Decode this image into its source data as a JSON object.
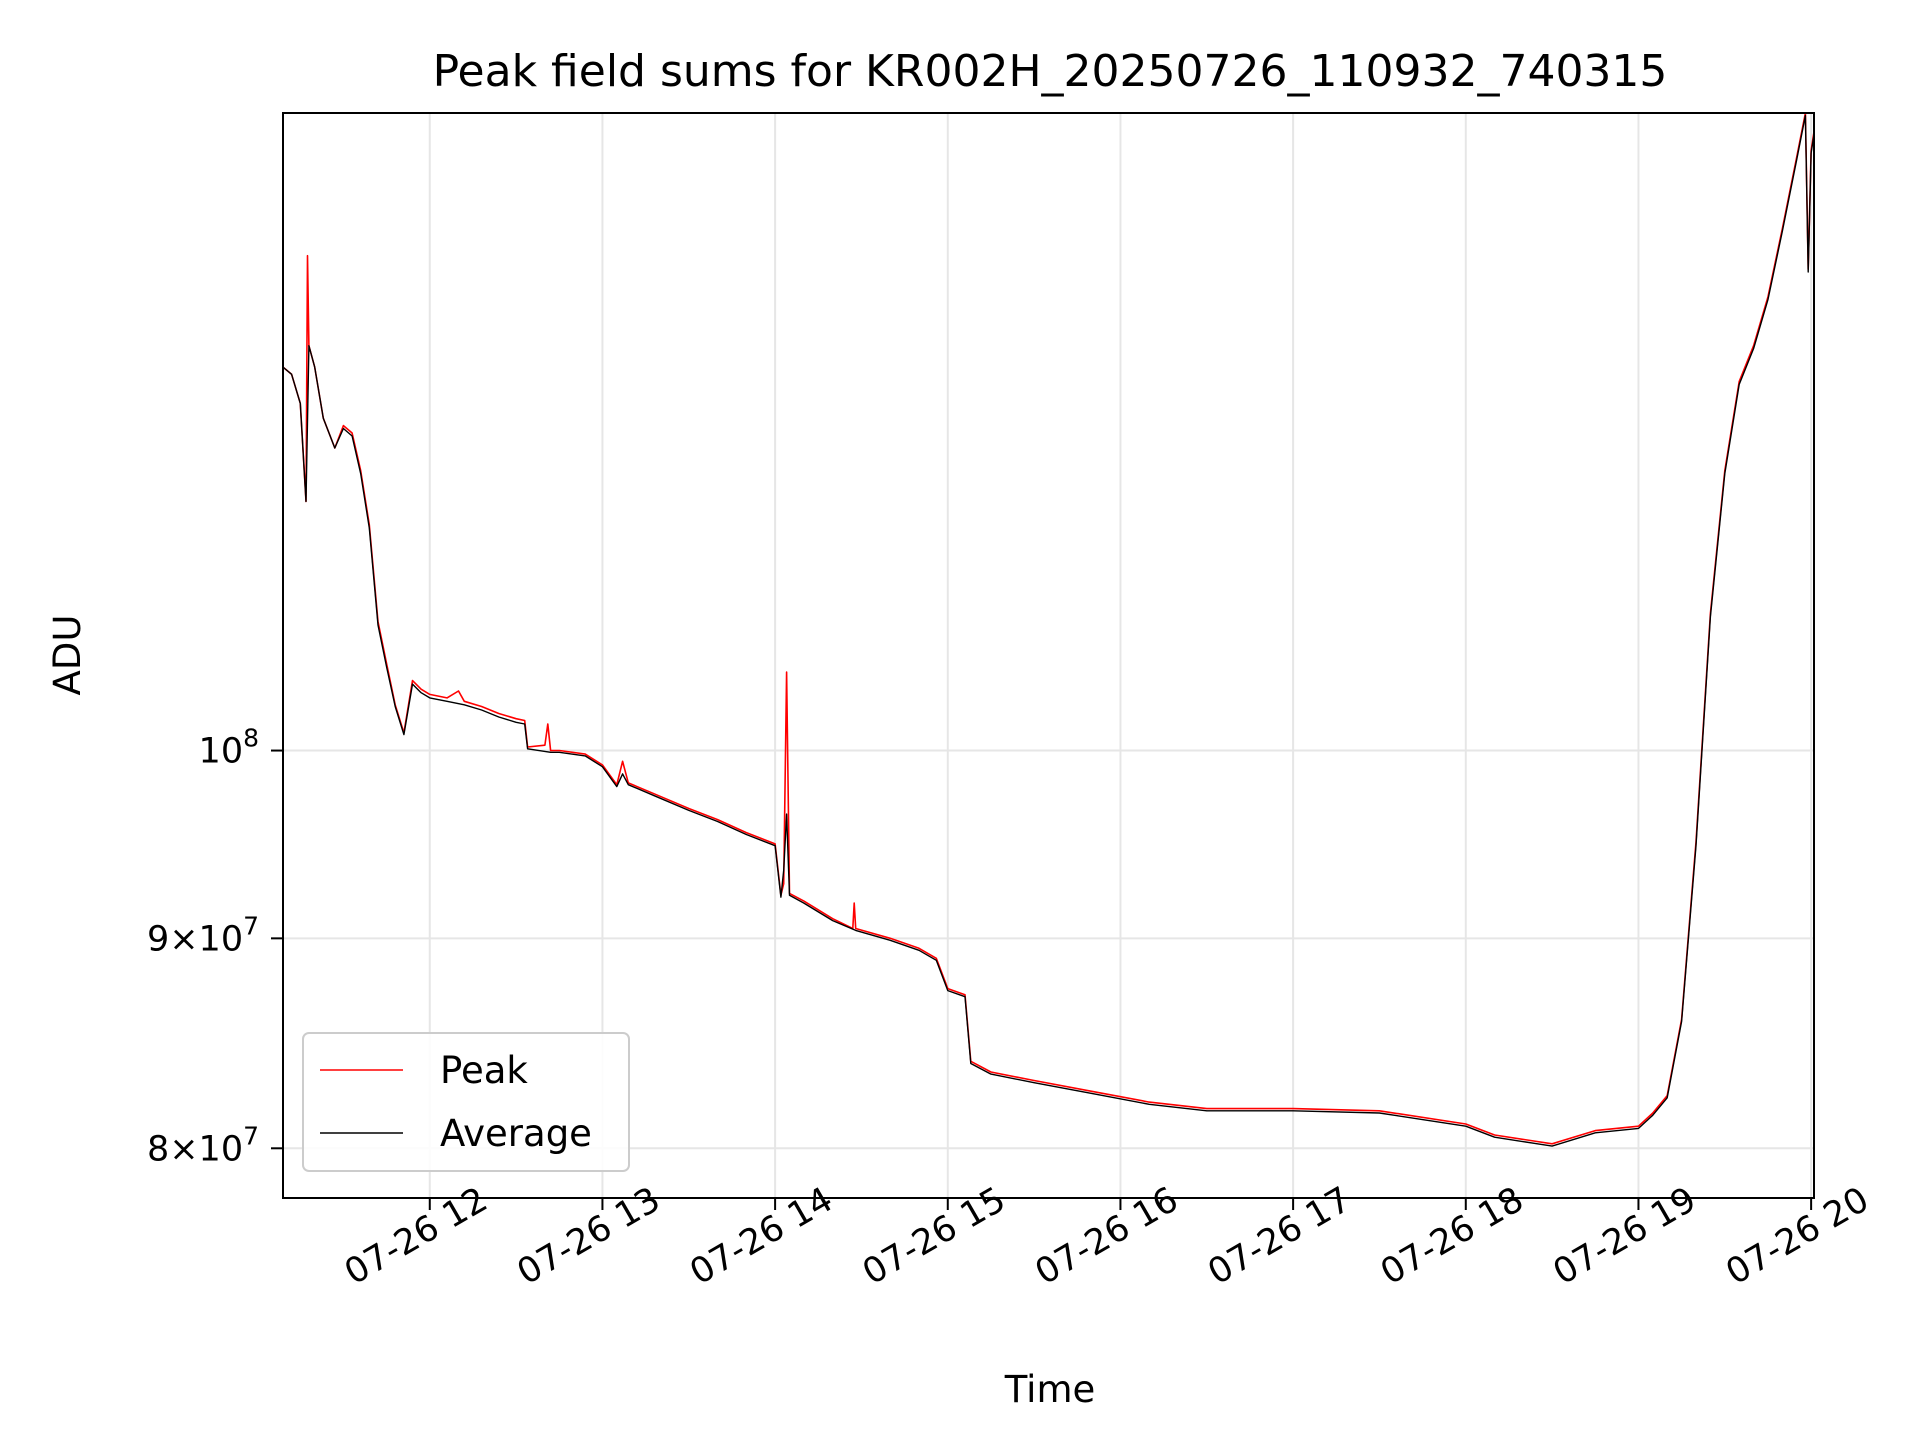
{
  "chart_data": {
    "type": "line",
    "title": "Peak field sums for KR002H_20250726_110932_740315",
    "xlabel": "Time",
    "ylabel": "ADU",
    "x_axis_type": "datetime",
    "xlim": [
      "2025-07-26 11:09",
      "2025-07-26 20:01"
    ],
    "ylim": [
      77800000,
      143000000
    ],
    "y_scale": "log",
    "grid": true,
    "legend_position": "lower-left",
    "x_ticks": [
      "07-26 12",
      "07-26 13",
      "07-26 14",
      "07-26 15",
      "07-26 16",
      "07-26 17",
      "07-26 18",
      "07-26 19",
      "07-26 20"
    ],
    "x_tick_times": [
      "2025-07-26 12:00",
      "2025-07-26 13:00",
      "2025-07-26 14:00",
      "2025-07-26 15:00",
      "2025-07-26 16:00",
      "2025-07-26 17:00",
      "2025-07-26 18:00",
      "2025-07-26 19:00",
      "2025-07-26 20:00"
    ],
    "y_ticks": [
      {
        "value": 100000000,
        "mantissa": "",
        "base": "10",
        "exp": "8"
      },
      {
        "value": 90000000,
        "mantissa": "9",
        "base": "10",
        "exp": "7"
      },
      {
        "value": 80000000,
        "mantissa": "8",
        "base": "10",
        "exp": "7"
      }
    ],
    "series": [
      {
        "name": "Peak",
        "color": "#ff0000",
        "points": [
          [
            "2025-07-26 11:09",
            124000000
          ],
          [
            "2025-07-26 11:12",
            123500000
          ],
          [
            "2025-07-26 11:15",
            121500000
          ],
          [
            "2025-07-26 11:17",
            115000000
          ],
          [
            "2025-07-26 11:17:30",
            132000000
          ],
          [
            "2025-07-26 11:18",
            125500000
          ],
          [
            "2025-07-26 11:20",
            124000000
          ],
          [
            "2025-07-26 11:23",
            120500000
          ],
          [
            "2025-07-26 11:27",
            118500000
          ],
          [
            "2025-07-26 11:30",
            120000000
          ],
          [
            "2025-07-26 11:33",
            119500000
          ],
          [
            "2025-07-26 11:36",
            117000000
          ],
          [
            "2025-07-26 11:39",
            113500000
          ],
          [
            "2025-07-26 11:42",
            107500000
          ],
          [
            "2025-07-26 11:45",
            105000000
          ],
          [
            "2025-07-26 11:48",
            102600000
          ],
          [
            "2025-07-26 11:51",
            101000000
          ],
          [
            "2025-07-26 11:54",
            104000000
          ],
          [
            "2025-07-26 11:57",
            103500000
          ],
          [
            "2025-07-26 12:00",
            103200000
          ],
          [
            "2025-07-26 12:06",
            103000000
          ],
          [
            "2025-07-26 12:10",
            103400000
          ],
          [
            "2025-07-26 12:12",
            102800000
          ],
          [
            "2025-07-26 12:18",
            102500000
          ],
          [
            "2025-07-26 12:24",
            102100000
          ],
          [
            "2025-07-26 12:30",
            101800000
          ],
          [
            "2025-07-26 12:33",
            101700000
          ],
          [
            "2025-07-26 12:34",
            100200000
          ],
          [
            "2025-07-26 12:40",
            100300000
          ],
          [
            "2025-07-26 12:41",
            101500000
          ],
          [
            "2025-07-26 12:42",
            100000000
          ],
          [
            "2025-07-26 12:45",
            100000000
          ],
          [
            "2025-07-26 12:54",
            99800000
          ],
          [
            "2025-07-26 13:00",
            99200000
          ],
          [
            "2025-07-26 13:05",
            98100000
          ],
          [
            "2025-07-26 13:07",
            99400000
          ],
          [
            "2025-07-26 13:09",
            98200000
          ],
          [
            "2025-07-26 13:18",
            97600000
          ],
          [
            "2025-07-26 13:30",
            96800000
          ],
          [
            "2025-07-26 13:40",
            96200000
          ],
          [
            "2025-07-26 13:50",
            95500000
          ],
          [
            "2025-07-26 14:00",
            94900000
          ],
          [
            "2025-07-26 14:02",
            92200000
          ],
          [
            "2025-07-26 14:03",
            92800000
          ],
          [
            "2025-07-26 14:04",
            104500000
          ],
          [
            "2025-07-26 14:05",
            92300000
          ],
          [
            "2025-07-26 14:10",
            91900000
          ],
          [
            "2025-07-26 14:20",
            91000000
          ],
          [
            "2025-07-26 14:27",
            90500000
          ],
          [
            "2025-07-26 14:27:30",
            91800000
          ],
          [
            "2025-07-26 14:28",
            90500000
          ],
          [
            "2025-07-26 14:40",
            90000000
          ],
          [
            "2025-07-26 14:50",
            89500000
          ],
          [
            "2025-07-26 14:56",
            89000000
          ],
          [
            "2025-07-26 15:00",
            87500000
          ],
          [
            "2025-07-26 15:06",
            87200000
          ],
          [
            "2025-07-26 15:08",
            84000000
          ],
          [
            "2025-07-26 15:15",
            83500000
          ],
          [
            "2025-07-26 15:30",
            83100000
          ],
          [
            "2025-07-26 15:50",
            82600000
          ],
          [
            "2025-07-26 16:10",
            82100000
          ],
          [
            "2025-07-26 16:30",
            81800000
          ],
          [
            "2025-07-26 17:00",
            81800000
          ],
          [
            "2025-07-26 17:30",
            81700000
          ],
          [
            "2025-07-26 18:00",
            81100000
          ],
          [
            "2025-07-26 18:10",
            80600000
          ],
          [
            "2025-07-26 18:30",
            80200000
          ],
          [
            "2025-07-26 18:45",
            80800000
          ],
          [
            "2025-07-26 19:00",
            81000000
          ],
          [
            "2025-07-26 19:05",
            81600000
          ],
          [
            "2025-07-26 19:10",
            82400000
          ],
          [
            "2025-07-26 19:15",
            86000000
          ],
          [
            "2025-07-26 19:20",
            95000000
          ],
          [
            "2025-07-26 19:25",
            108000000
          ],
          [
            "2025-07-26 19:30",
            117000000
          ],
          [
            "2025-07-26 19:35",
            123000000
          ],
          [
            "2025-07-26 19:40",
            125500000
          ],
          [
            "2025-07-26 19:45",
            129000000
          ],
          [
            "2025-07-26 19:50",
            134000000
          ],
          [
            "2025-07-26 19:55",
            139500000
          ],
          [
            "2025-07-26 19:58",
            143000000
          ],
          [
            "2025-07-26 19:59",
            131000000
          ],
          [
            "2025-07-26 20:00",
            140000000
          ],
          [
            "2025-07-26 20:01",
            141500000
          ]
        ]
      },
      {
        "name": "Average",
        "color": "#000000",
        "points": [
          [
            "2025-07-26 11:09",
            124000000
          ],
          [
            "2025-07-26 11:12",
            123500000
          ],
          [
            "2025-07-26 11:15",
            121500000
          ],
          [
            "2025-07-26 11:17",
            115000000
          ],
          [
            "2025-07-26 11:18",
            125500000
          ],
          [
            "2025-07-26 11:20",
            124000000
          ],
          [
            "2025-07-26 11:23",
            120500000
          ],
          [
            "2025-07-26 11:27",
            118500000
          ],
          [
            "2025-07-26 11:30",
            119800000
          ],
          [
            "2025-07-26 11:33",
            119300000
          ],
          [
            "2025-07-26 11:36",
            116800000
          ],
          [
            "2025-07-26 11:39",
            113300000
          ],
          [
            "2025-07-26 11:42",
            107300000
          ],
          [
            "2025-07-26 11:45",
            104800000
          ],
          [
            "2025-07-26 11:48",
            102500000
          ],
          [
            "2025-07-26 11:51",
            100900000
          ],
          [
            "2025-07-26 11:54",
            103800000
          ],
          [
            "2025-07-26 11:57",
            103300000
          ],
          [
            "2025-07-26 12:00",
            103000000
          ],
          [
            "2025-07-26 12:06",
            102800000
          ],
          [
            "2025-07-26 12:12",
            102600000
          ],
          [
            "2025-07-26 12:18",
            102300000
          ],
          [
            "2025-07-26 12:24",
            101900000
          ],
          [
            "2025-07-26 12:30",
            101600000
          ],
          [
            "2025-07-26 12:33",
            101500000
          ],
          [
            "2025-07-26 12:34",
            100100000
          ],
          [
            "2025-07-26 12:42",
            99900000
          ],
          [
            "2025-07-26 12:45",
            99900000
          ],
          [
            "2025-07-26 12:54",
            99700000
          ],
          [
            "2025-07-26 13:00",
            99100000
          ],
          [
            "2025-07-26 13:05",
            98000000
          ],
          [
            "2025-07-26 13:07",
            98700000
          ],
          [
            "2025-07-26 13:09",
            98100000
          ],
          [
            "2025-07-26 13:18",
            97500000
          ],
          [
            "2025-07-26 13:30",
            96700000
          ],
          [
            "2025-07-26 13:40",
            96100000
          ],
          [
            "2025-07-26 13:50",
            95400000
          ],
          [
            "2025-07-26 14:00",
            94800000
          ],
          [
            "2025-07-26 14:02",
            92100000
          ],
          [
            "2025-07-26 14:03",
            93500000
          ],
          [
            "2025-07-26 14:04",
            96500000
          ],
          [
            "2025-07-26 14:05",
            92200000
          ],
          [
            "2025-07-26 14:10",
            91800000
          ],
          [
            "2025-07-26 14:20",
            90900000
          ],
          [
            "2025-07-26 14:28",
            90400000
          ],
          [
            "2025-07-26 14:40",
            89900000
          ],
          [
            "2025-07-26 14:50",
            89400000
          ],
          [
            "2025-07-26 14:56",
            88900000
          ],
          [
            "2025-07-26 15:00",
            87400000
          ],
          [
            "2025-07-26 15:06",
            87100000
          ],
          [
            "2025-07-26 15:08",
            83900000
          ],
          [
            "2025-07-26 15:15",
            83400000
          ],
          [
            "2025-07-26 15:30",
            83000000
          ],
          [
            "2025-07-26 15:50",
            82500000
          ],
          [
            "2025-07-26 16:10",
            82000000
          ],
          [
            "2025-07-26 16:30",
            81700000
          ],
          [
            "2025-07-26 17:00",
            81700000
          ],
          [
            "2025-07-26 17:30",
            81600000
          ],
          [
            "2025-07-26 18:00",
            81000000
          ],
          [
            "2025-07-26 18:10",
            80500000
          ],
          [
            "2025-07-26 18:30",
            80100000
          ],
          [
            "2025-07-26 18:45",
            80700000
          ],
          [
            "2025-07-26 19:00",
            80900000
          ],
          [
            "2025-07-26 19:05",
            81500000
          ],
          [
            "2025-07-26 19:10",
            82300000
          ],
          [
            "2025-07-26 19:15",
            85900000
          ],
          [
            "2025-07-26 19:20",
            94800000
          ],
          [
            "2025-07-26 19:25",
            107800000
          ],
          [
            "2025-07-26 19:30",
            116800000
          ],
          [
            "2025-07-26 19:35",
            122800000
          ],
          [
            "2025-07-26 19:40",
            125300000
          ],
          [
            "2025-07-26 19:45",
            128800000
          ],
          [
            "2025-07-26 19:50",
            133800000
          ],
          [
            "2025-07-26 19:55",
            139300000
          ],
          [
            "2025-07-26 19:58",
            142800000
          ],
          [
            "2025-07-26 19:59",
            130800000
          ],
          [
            "2025-07-26 20:00",
            139800000
          ],
          [
            "2025-07-26 20:01",
            141300000
          ]
        ]
      }
    ]
  }
}
